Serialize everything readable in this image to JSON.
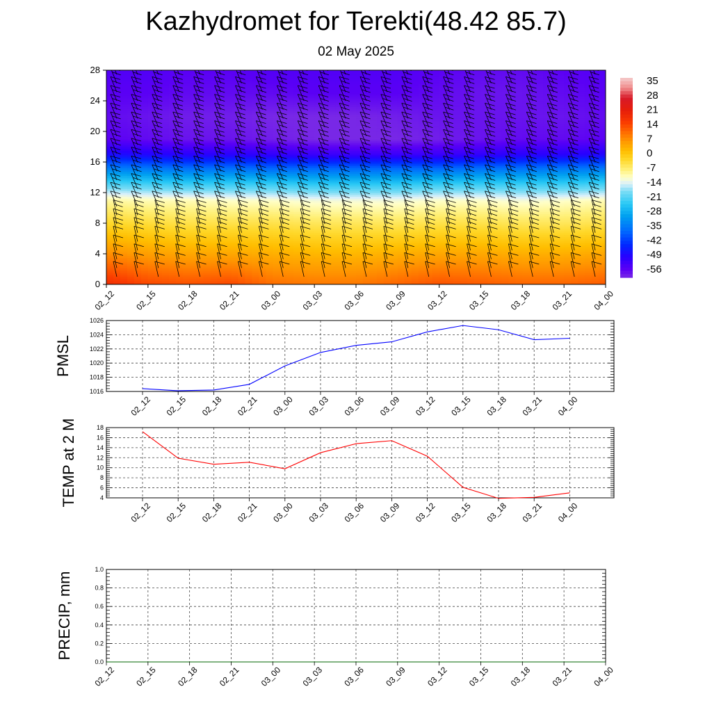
{
  "header": {
    "title": "Kazhydromet for Terekti(48.42 85.7)",
    "subtitle": "02 May 2025"
  },
  "time_labels": [
    "02_12",
    "02_15",
    "02_18",
    "02_21",
    "03_00",
    "03_03",
    "03_06",
    "03_09",
    "03_12",
    "03_15",
    "03_18",
    "03_21",
    "04_00"
  ],
  "chart_data": [
    {
      "type": "heatmap",
      "title": "",
      "variable": "temperature vertical cross-section with wind barbs",
      "x": [
        "02_12",
        "02_15",
        "02_18",
        "02_21",
        "03_00",
        "03_03",
        "03_06",
        "03_09",
        "03_12",
        "03_15",
        "03_18",
        "03_21",
        "04_00"
      ],
      "y_ticks": [
        0,
        4,
        8,
        12,
        16,
        20,
        24,
        28
      ],
      "ylim": [
        0,
        28
      ],
      "colorbar": {
        "labels": [
          "35",
          "28",
          "21",
          "14",
          "7",
          "0",
          "-7",
          "-14",
          "-21",
          "-28",
          "-35",
          "-42",
          "-49",
          "-56"
        ],
        "min": -60,
        "max": 38
      },
      "temperature_levels": [
        {
          "level": 0,
          "values": [
            19,
            15,
            14,
            15,
            11,
            10,
            10,
            12,
            14,
            13,
            12,
            12,
            13
          ]
        },
        {
          "level": 4,
          "values": [
            8,
            6,
            5,
            5,
            4,
            3,
            3,
            4,
            5,
            5,
            4,
            4,
            5
          ]
        },
        {
          "level": 8,
          "values": [
            -2,
            -3,
            -4,
            -4,
            -4,
            -5,
            -5,
            -5,
            -4,
            -4,
            -5,
            -5,
            -4
          ]
        },
        {
          "level": 11,
          "values": [
            -9,
            -10,
            -10,
            -11,
            -11,
            -12,
            -12,
            -12,
            -11,
            -11,
            -12,
            -11,
            -10
          ]
        },
        {
          "level": 13,
          "values": [
            -20,
            -21,
            -22,
            -22,
            -22,
            -23,
            -23,
            -23,
            -22,
            -22,
            -22,
            -22,
            -21
          ]
        },
        {
          "level": 15,
          "values": [
            -33,
            -34,
            -35,
            -35,
            -36,
            -36,
            -36,
            -36,
            -36,
            -35,
            -35,
            -34,
            -34
          ]
        },
        {
          "level": 17,
          "values": [
            -48,
            -49,
            -50,
            -50,
            -51,
            -52,
            -52,
            -52,
            -52,
            -51,
            -50,
            -50,
            -49
          ]
        },
        {
          "level": 19,
          "values": [
            -56,
            -57,
            -58,
            -58,
            -59,
            -60,
            -60,
            -60,
            -59,
            -58,
            -57,
            -57,
            -56
          ]
        },
        {
          "level": 22,
          "values": [
            -57,
            -58,
            -59,
            -59,
            -60,
            -60,
            -60,
            -59,
            -58,
            -58,
            -58,
            -58,
            -57
          ]
        },
        {
          "level": 25,
          "values": [
            -56,
            -56,
            -57,
            -57,
            -57,
            -56,
            -56,
            -56,
            -57,
            -58,
            -58,
            -57,
            -56
          ]
        },
        {
          "level": 28,
          "values": [
            -55,
            -55,
            -56,
            -56,
            -55,
            -55,
            -55,
            -55,
            -56,
            -57,
            -57,
            -56,
            -55
          ]
        }
      ]
    },
    {
      "type": "line",
      "title": "",
      "ylabel": "PMSL",
      "x": [
        "02_12",
        "02_15",
        "02_18",
        "02_21",
        "03_00",
        "03_03",
        "03_06",
        "03_09",
        "03_12",
        "03_15",
        "03_18",
        "03_21",
        "04_00"
      ],
      "series": [
        {
          "values": [
            1016.4,
            1016.1,
            1016.2,
            1017.0,
            1019.6,
            1021.5,
            1022.5,
            1023.0,
            1024.4,
            1025.3,
            1024.7,
            1023.3,
            1023.5
          ],
          "color": "#0000ff"
        }
      ],
      "ylim": [
        1016,
        1026
      ],
      "y_ticks": [
        1016,
        1018,
        1020,
        1022,
        1024,
        1026
      ],
      "grid": true
    },
    {
      "type": "line",
      "title": "",
      "ylabel": "TEMP at 2 M",
      "x": [
        "02_12",
        "02_15",
        "02_18",
        "02_21",
        "03_00",
        "03_03",
        "03_06",
        "03_09",
        "03_12",
        "03_15",
        "03_18",
        "03_21",
        "04_00"
      ],
      "series": [
        {
          "values": [
            17.2,
            11.9,
            10.7,
            11.1,
            9.8,
            13.0,
            14.8,
            15.4,
            12.3,
            6.1,
            3.9,
            4.1,
            5.0
          ],
          "color": "#ff0000"
        }
      ],
      "ylim": [
        4,
        18
      ],
      "y_ticks": [
        4,
        6,
        8,
        10,
        12,
        14,
        16,
        18
      ],
      "grid": true
    },
    {
      "type": "line",
      "title": "",
      "ylabel": "PRECIP, mm",
      "x": [
        "02_12",
        "02_15",
        "02_18",
        "02_21",
        "03_00",
        "03_03",
        "03_06",
        "03_09",
        "03_12",
        "03_15",
        "03_18",
        "03_21",
        "04_00"
      ],
      "series": [
        {
          "values": [
            0,
            0,
            0,
            0,
            0,
            0,
            0,
            0,
            0,
            0,
            0,
            0,
            0
          ],
          "color": "#006400"
        }
      ],
      "ylim": [
        0,
        1
      ],
      "y_ticks": [
        "0.0",
        "0.2",
        "0.4",
        "0.6",
        "0.8",
        "1.0"
      ],
      "grid": true
    }
  ]
}
